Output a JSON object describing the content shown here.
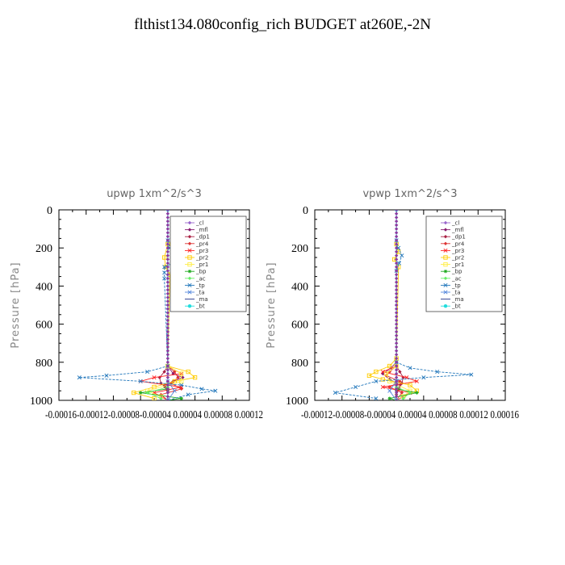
{
  "title": "flthist134.080config_rich  BUDGET at260E,-2N",
  "chart_data": [
    {
      "type": "line",
      "title": "upwp   1xm^2/s^3",
      "ylabel": "Pressure [hPa]",
      "ylim": [
        1000,
        0
      ],
      "xlim": [
        -0.00016,
        0.00012
      ],
      "yticks": [
        "0",
        "200",
        "400",
        "600",
        "800",
        "1000"
      ],
      "xtick_labels": "-0.00016-0.00012-0.00008-0.00004 0.00004 0.00008 0.00012",
      "legend_position": "top-right",
      "series": [
        {
          "name": "_cl",
          "color": "#9966cc",
          "marker": "diamond",
          "p": [
            0,
            500,
            1000
          ],
          "v": [
            0,
            0,
            0
          ]
        },
        {
          "name": "_mfl",
          "color": "#881c6f",
          "marker": "diamond",
          "p": [
            820,
            860,
            880,
            900,
            920,
            950,
            1000
          ],
          "v": [
            0,
            8e-06,
            2.2e-05,
            8e-06,
            -4e-06,
            0,
            0
          ]
        },
        {
          "name": "_dp1",
          "color": "#aa2244",
          "marker": "diamond",
          "p": [
            820,
            850,
            880,
            910,
            930,
            960,
            1000
          ],
          "v": [
            0,
            -5e-06,
            -1.2e-05,
            -1e-05,
            -4e-06,
            0,
            0
          ]
        },
        {
          "name": "_pr4",
          "color": "#dd3333",
          "marker": "diamond",
          "p": [
            820,
            850,
            880,
            910,
            940,
            970,
            1000
          ],
          "v": [
            0,
            1e-05,
            1.5e-05,
            5e-06,
            2e-05,
            -1e-05,
            0
          ]
        },
        {
          "name": "_pr3",
          "color": "#ff2222",
          "marker": "cross",
          "p": [
            820,
            860,
            880,
            900,
            930,
            960,
            1000
          ],
          "v": [
            0,
            2e-05,
            -2e-05,
            -4e-05,
            2e-05,
            -2e-05,
            0
          ]
        },
        {
          "name": "_pr2",
          "color": "#ffcc00",
          "marker": "square",
          "p": [
            180,
            250,
            300,
            340,
            820,
            850,
            880,
            900,
            930,
            960,
            990
          ],
          "v": [
            0,
            -5e-06,
            -3e-06,
            3e-06,
            0,
            3e-05,
            4e-05,
            1e-05,
            -2e-05,
            -5e-05,
            -2e-05
          ]
        },
        {
          "name": "_pr1",
          "color": "#ffee44",
          "marker": "square",
          "p": [
            820,
            860,
            900,
            950,
            980
          ],
          "v": [
            0,
            2e-05,
            2e-05,
            -3e-05,
            -1e-05
          ]
        },
        {
          "name": "_bp",
          "color": "#22aa22",
          "marker": "star",
          "p": [
            940,
            960,
            990,
            1000
          ],
          "v": [
            0,
            -4e-05,
            2e-05,
            0
          ]
        },
        {
          "name": "_ac",
          "color": "#66ee66",
          "marker": "diamond",
          "p": [
            930,
            960,
            990
          ],
          "v": [
            0,
            -3e-05,
            -1e-05
          ]
        },
        {
          "name": "_tp",
          "color": "#2277bb",
          "marker": "cross",
          "p": [
            160,
            200,
            240,
            260,
            300,
            330,
            360,
            820,
            850,
            870,
            880,
            900,
            920,
            940,
            950,
            970,
            1000
          ],
          "v": [
            0,
            3e-06,
            1e-05,
            2e-05,
            -5e-06,
            -5e-06,
            -5e-06,
            0,
            -3e-05,
            -9e-05,
            -0.00013,
            -4e-05,
            2e-05,
            5e-05,
            7e-05,
            3e-05,
            0
          ]
        },
        {
          "name": "_ta",
          "color": "#5588dd",
          "marker": "cross",
          "p": [
            900,
            950,
            1000
          ],
          "v": [
            0,
            1e-05,
            0
          ]
        },
        {
          "name": "_ma",
          "color": "#223388",
          "marker": "none",
          "p": [
            0,
            1000
          ],
          "v": [
            0,
            0
          ]
        },
        {
          "name": "_bt",
          "color": "#22dddd",
          "marker": "circle",
          "p": [
            0,
            1000
          ],
          "v": [
            0,
            0
          ]
        }
      ]
    },
    {
      "type": "line",
      "title": "vpwp   1xm^2/s^3",
      "ylabel": "Pressure [hPa]",
      "ylim": [
        1000,
        0
      ],
      "xlim": [
        -0.00012,
        0.00016
      ],
      "yticks": [
        "0",
        "200",
        "400",
        "600",
        "800",
        "1000"
      ],
      "xtick_labels": "-0.00012-0.00008-0.00004 0.00004 0.00008 0.00012 0.00016",
      "legend_position": "top-right",
      "series": [
        {
          "name": "_cl",
          "color": "#9966cc",
          "marker": "diamond",
          "p": [
            0,
            500,
            1000
          ],
          "v": [
            0,
            0,
            0
          ]
        },
        {
          "name": "_mfl",
          "color": "#881c6f",
          "marker": "diamond",
          "p": [
            800,
            830,
            860,
            890,
            920,
            950,
            1000
          ],
          "v": [
            0,
            -8e-06,
            -2e-05,
            -1e-05,
            5e-06,
            0,
            0
          ]
        },
        {
          "name": "_dp1",
          "color": "#aa2244",
          "marker": "diamond",
          "p": [
            820,
            850,
            880,
            910,
            940,
            970,
            1000
          ],
          "v": [
            0,
            5e-06,
            1e-05,
            8e-06,
            4e-06,
            0,
            0
          ]
        },
        {
          "name": "_pr4",
          "color": "#dd3333",
          "marker": "diamond",
          "p": [
            820,
            850,
            870,
            900,
            930,
            960,
            1000
          ],
          "v": [
            0,
            -1e-05,
            -1.5e-05,
            5e-06,
            -1e-05,
            8e-06,
            0
          ]
        },
        {
          "name": "_pr3",
          "color": "#ff2222",
          "marker": "cross",
          "p": [
            820,
            850,
            880,
            900,
            930,
            960,
            1000
          ],
          "v": [
            0,
            -2e-05,
            1.5e-05,
            3e-05,
            -2e-05,
            2e-05,
            0
          ]
        },
        {
          "name": "_pr2",
          "color": "#ffcc00",
          "marker": "square",
          "p": [
            180,
            220,
            260,
            300,
            780,
            820,
            850,
            870,
            890,
            920,
            950,
            980
          ],
          "v": [
            0,
            3e-06,
            -3e-06,
            3e-06,
            0,
            -1e-05,
            -3e-05,
            -4e-05,
            -2e-05,
            2e-05,
            3e-05,
            1e-05
          ]
        },
        {
          "name": "_pr1",
          "color": "#ffee44",
          "marker": "square",
          "p": [
            820,
            860,
            900,
            950,
            980
          ],
          "v": [
            0,
            -1.5e-05,
            -1e-05,
            2e-05,
            1e-05
          ]
        },
        {
          "name": "_bp",
          "color": "#22aa22",
          "marker": "star",
          "p": [
            940,
            960,
            990,
            1000
          ],
          "v": [
            0,
            3e-05,
            -1e-05,
            0
          ]
        },
        {
          "name": "_ac",
          "color": "#66ee66",
          "marker": "diamond",
          "p": [
            930,
            960,
            990
          ],
          "v": [
            0,
            2e-05,
            1e-05
          ]
        },
        {
          "name": "_tp",
          "color": "#2277bb",
          "marker": "cross",
          "p": [
            160,
            200,
            240,
            280,
            320,
            800,
            830,
            850,
            865,
            880,
            900,
            930,
            960,
            990
          ],
          "v": [
            0,
            3e-06,
            8e-06,
            4e-06,
            0,
            0,
            2e-05,
            6e-05,
            0.00011,
            4e-05,
            -3e-05,
            -6e-05,
            -9e-05,
            -3e-05
          ]
        },
        {
          "name": "_ta",
          "color": "#5588dd",
          "marker": "cross",
          "p": [
            900,
            950,
            1000
          ],
          "v": [
            0,
            -1e-05,
            0
          ]
        },
        {
          "name": "_ma",
          "color": "#223388",
          "marker": "none",
          "p": [
            0,
            1000
          ],
          "v": [
            0,
            0
          ]
        },
        {
          "name": "_bt",
          "color": "#22dddd",
          "marker": "circle",
          "p": [
            0,
            1000
          ],
          "v": [
            0,
            0
          ]
        }
      ]
    }
  ]
}
